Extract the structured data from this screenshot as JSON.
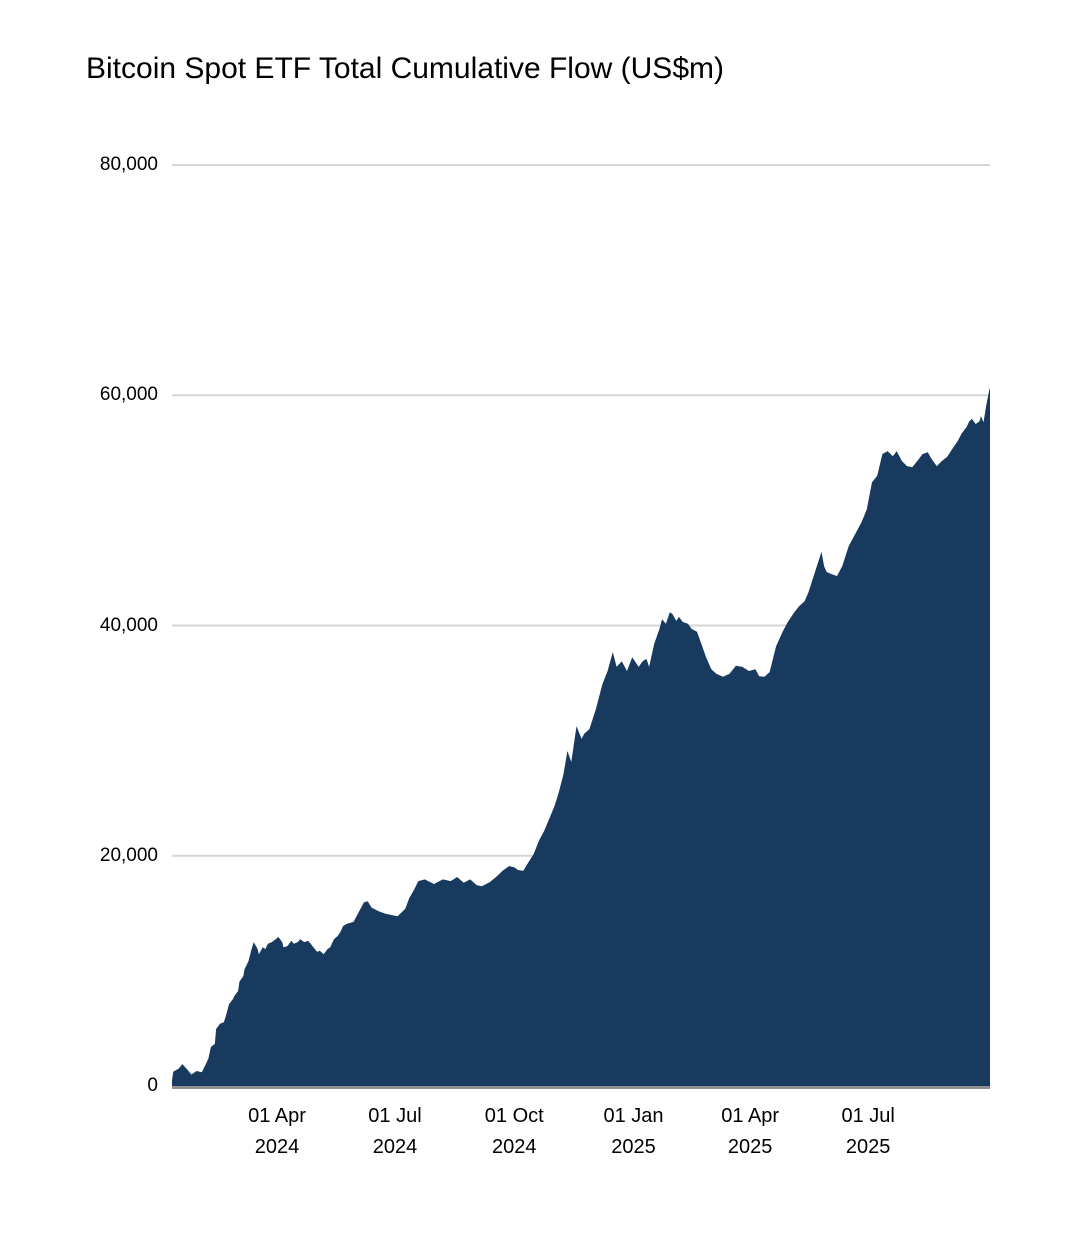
{
  "chart": {
    "title": "Bitcoin Spot ETF Total Cumulative Flow (US$m)"
  },
  "chart_data": {
    "type": "area",
    "title": "Bitcoin Spot ETF Total Cumulative Flow (US$m)",
    "xlabel": "",
    "ylabel": "",
    "x_domain": [
      "2024-01-11",
      "2025-10-03"
    ],
    "ylim": [
      0,
      80000
    ],
    "grid": true,
    "legend": false,
    "area_color": "#173A5E",
    "gridline_color": "#D6D6D6",
    "axisline_color": "#8F8F8F",
    "y_ticks": [
      {
        "value": 0,
        "label": "0"
      },
      {
        "value": 20000,
        "label": "20,000"
      },
      {
        "value": 40000,
        "label": "40,000"
      },
      {
        "value": 60000,
        "label": "60,000"
      },
      {
        "value": 80000,
        "label": "80,000"
      }
    ],
    "x_ticks": [
      {
        "date": "2024-04-01",
        "line1": "01 Apr",
        "line2": "2024"
      },
      {
        "date": "2024-07-01",
        "line1": "01 Jul",
        "line2": "2024"
      },
      {
        "date": "2024-10-01",
        "line1": "01 Oct",
        "line2": "2024"
      },
      {
        "date": "2025-01-01",
        "line1": "01 Jan",
        "line2": "2025"
      },
      {
        "date": "2025-04-01",
        "line1": "01 Apr",
        "line2": "2025"
      },
      {
        "date": "2025-07-01",
        "line1": "01 Jul",
        "line2": "2025"
      }
    ],
    "points": [
      [
        "2024-01-11",
        500
      ],
      [
        "2024-01-12",
        1250
      ],
      [
        "2024-01-16",
        1500
      ],
      [
        "2024-01-19",
        1900
      ],
      [
        "2024-01-23",
        1400
      ],
      [
        "2024-01-26",
        1000
      ],
      [
        "2024-01-30",
        1300
      ],
      [
        "2024-02-03",
        1200
      ],
      [
        "2024-02-05",
        1650
      ],
      [
        "2024-02-08",
        2350
      ],
      [
        "2024-02-10",
        3400
      ],
      [
        "2024-02-13",
        3650
      ],
      [
        "2024-02-14",
        4950
      ],
      [
        "2024-02-17",
        5400
      ],
      [
        "2024-02-20",
        5550
      ],
      [
        "2024-02-22",
        6250
      ],
      [
        "2024-02-24",
        7100
      ],
      [
        "2024-02-27",
        7550
      ],
      [
        "2024-02-28",
        7800
      ],
      [
        "2024-03-02",
        8250
      ],
      [
        "2024-03-03",
        9050
      ],
      [
        "2024-03-06",
        9550
      ],
      [
        "2024-03-07",
        10150
      ],
      [
        "2024-03-10",
        10850
      ],
      [
        "2024-03-12",
        11750
      ],
      [
        "2024-03-14",
        12500
      ],
      [
        "2024-03-17",
        11900
      ],
      [
        "2024-03-18",
        11450
      ],
      [
        "2024-03-21",
        12050
      ],
      [
        "2024-03-23",
        11900
      ],
      [
        "2024-03-25",
        12350
      ],
      [
        "2024-03-28",
        12500
      ],
      [
        "2024-03-31",
        12750
      ],
      [
        "2024-04-02",
        12950
      ],
      [
        "2024-04-05",
        12500
      ],
      [
        "2024-04-06",
        12050
      ],
      [
        "2024-04-09",
        12150
      ],
      [
        "2024-04-12",
        12600
      ],
      [
        "2024-04-14",
        12350
      ],
      [
        "2024-04-17",
        12500
      ],
      [
        "2024-04-19",
        12750
      ],
      [
        "2024-04-22",
        12500
      ],
      [
        "2024-04-25",
        12600
      ],
      [
        "2024-04-27",
        12350
      ],
      [
        "2024-04-29",
        12050
      ],
      [
        "2024-05-02",
        11650
      ],
      [
        "2024-05-04",
        11750
      ],
      [
        "2024-05-07",
        11450
      ],
      [
        "2024-05-10",
        11900
      ],
      [
        "2024-05-12",
        12050
      ],
      [
        "2024-05-15",
        12750
      ],
      [
        "2024-05-18",
        13050
      ],
      [
        "2024-05-20",
        13400
      ],
      [
        "2024-05-22",
        13900
      ],
      [
        "2024-05-25",
        14100
      ],
      [
        "2024-05-30",
        14250
      ],
      [
        "2024-06-03",
        15100
      ],
      [
        "2024-06-07",
        15950
      ],
      [
        "2024-06-10",
        16050
      ],
      [
        "2024-06-13",
        15500
      ],
      [
        "2024-06-18",
        15200
      ],
      [
        "2024-06-24",
        14950
      ],
      [
        "2024-07-03",
        14750
      ],
      [
        "2024-07-09",
        15400
      ],
      [
        "2024-07-12",
        16300
      ],
      [
        "2024-07-16",
        17100
      ],
      [
        "2024-07-19",
        17800
      ],
      [
        "2024-07-24",
        17950
      ],
      [
        "2024-07-31",
        17550
      ],
      [
        "2024-08-07",
        17950
      ],
      [
        "2024-08-13",
        17800
      ],
      [
        "2024-08-18",
        18150
      ],
      [
        "2024-08-23",
        17650
      ],
      [
        "2024-08-28",
        17950
      ],
      [
        "2024-09-02",
        17450
      ],
      [
        "2024-09-06",
        17350
      ],
      [
        "2024-09-12",
        17700
      ],
      [
        "2024-09-17",
        18150
      ],
      [
        "2024-09-22",
        18700
      ],
      [
        "2024-09-27",
        19100
      ],
      [
        "2024-10-01",
        19000
      ],
      [
        "2024-10-04",
        18750
      ],
      [
        "2024-10-08",
        18700
      ],
      [
        "2024-10-12",
        19450
      ],
      [
        "2024-10-16",
        20150
      ],
      [
        "2024-10-20",
        21300
      ],
      [
        "2024-10-24",
        22150
      ],
      [
        "2024-10-28",
        23200
      ],
      [
        "2024-11-01",
        24300
      ],
      [
        "2024-11-04",
        25350
      ],
      [
        "2024-11-08",
        27100
      ],
      [
        "2024-11-11",
        29100
      ],
      [
        "2024-11-14",
        28150
      ],
      [
        "2024-11-18",
        31250
      ],
      [
        "2024-11-22",
        30150
      ],
      [
        "2024-11-24",
        30600
      ],
      [
        "2024-11-28",
        31000
      ],
      [
        "2024-12-03",
        32750
      ],
      [
        "2024-12-08",
        34900
      ],
      [
        "2024-12-12",
        36050
      ],
      [
        "2024-12-16",
        37700
      ],
      [
        "2024-12-19",
        36400
      ],
      [
        "2024-12-23",
        36900
      ],
      [
        "2024-12-27",
        36050
      ],
      [
        "2024-12-31",
        37250
      ],
      [
        "2025-01-05",
        36400
      ],
      [
        "2025-01-08",
        36900
      ],
      [
        "2025-01-11",
        37100
      ],
      [
        "2025-01-13",
        36400
      ],
      [
        "2025-01-17",
        38400
      ],
      [
        "2025-01-21",
        39700
      ],
      [
        "2025-01-23",
        40550
      ],
      [
        "2025-01-26",
        40150
      ],
      [
        "2025-01-29",
        41150
      ],
      [
        "2025-01-31",
        41000
      ],
      [
        "2025-02-03",
        40400
      ],
      [
        "2025-02-05",
        40750
      ],
      [
        "2025-02-08",
        40300
      ],
      [
        "2025-02-12",
        40150
      ],
      [
        "2025-02-15",
        39700
      ],
      [
        "2025-02-19",
        39450
      ],
      [
        "2025-02-23",
        38200
      ],
      [
        "2025-02-26",
        37250
      ],
      [
        "2025-03-02",
        36200
      ],
      [
        "2025-03-06",
        35800
      ],
      [
        "2025-03-11",
        35550
      ],
      [
        "2025-03-16",
        35800
      ],
      [
        "2025-03-21",
        36500
      ],
      [
        "2025-03-26",
        36400
      ],
      [
        "2025-03-31",
        36050
      ],
      [
        "2025-04-05",
        36200
      ],
      [
        "2025-04-08",
        35600
      ],
      [
        "2025-04-12",
        35550
      ],
      [
        "2025-04-16",
        35950
      ],
      [
        "2025-04-18",
        36850
      ],
      [
        "2025-04-21",
        38200
      ],
      [
        "2025-04-26",
        39450
      ],
      [
        "2025-04-30",
        40300
      ],
      [
        "2025-05-05",
        41150
      ],
      [
        "2025-05-09",
        41700
      ],
      [
        "2025-05-13",
        42100
      ],
      [
        "2025-05-16",
        42900
      ],
      [
        "2025-05-20",
        44300
      ],
      [
        "2025-05-26",
        46400
      ],
      [
        "2025-05-28",
        45150
      ],
      [
        "2025-05-30",
        44650
      ],
      [
        "2025-06-03",
        44450
      ],
      [
        "2025-06-07",
        44300
      ],
      [
        "2025-06-11",
        45150
      ],
      [
        "2025-06-16",
        46900
      ],
      [
        "2025-06-21",
        47950
      ],
      [
        "2025-06-26",
        49000
      ],
      [
        "2025-06-30",
        50100
      ],
      [
        "2025-07-04",
        52450
      ],
      [
        "2025-07-08",
        53000
      ],
      [
        "2025-07-12",
        54900
      ],
      [
        "2025-07-16",
        55150
      ],
      [
        "2025-07-20",
        54700
      ],
      [
        "2025-07-23",
        55150
      ],
      [
        "2025-07-27",
        54300
      ],
      [
        "2025-07-31",
        53850
      ],
      [
        "2025-08-04",
        53750
      ],
      [
        "2025-08-08",
        54300
      ],
      [
        "2025-08-12",
        54900
      ],
      [
        "2025-08-16",
        55050
      ],
      [
        "2025-08-19",
        54450
      ],
      [
        "2025-08-23",
        53850
      ],
      [
        "2025-08-27",
        54300
      ],
      [
        "2025-08-31",
        54650
      ],
      [
        "2025-09-04",
        55350
      ],
      [
        "2025-09-08",
        56000
      ],
      [
        "2025-09-11",
        56650
      ],
      [
        "2025-09-15",
        57250
      ],
      [
        "2025-09-17",
        57750
      ],
      [
        "2025-09-19",
        57950
      ],
      [
        "2025-09-22",
        57500
      ],
      [
        "2025-09-25",
        57750
      ],
      [
        "2025-09-26",
        58200
      ],
      [
        "2025-09-28",
        57650
      ],
      [
        "2025-09-30",
        59050
      ],
      [
        "2025-10-02",
        60200
      ],
      [
        "2025-10-03",
        60700
      ]
    ]
  }
}
